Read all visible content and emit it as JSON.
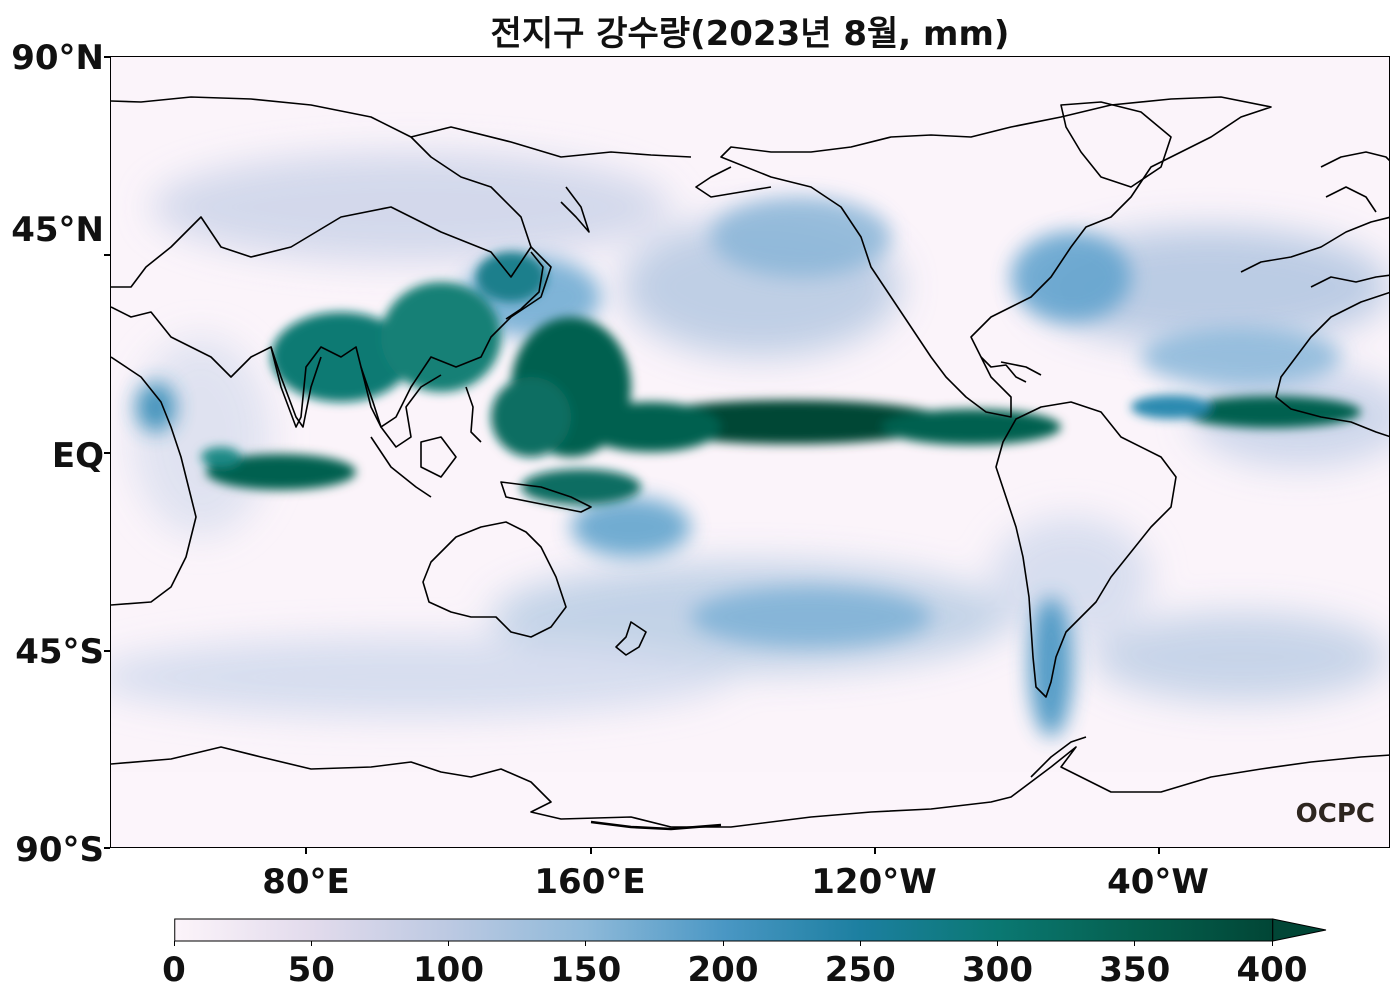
{
  "title": "전지구 강수량(2023년 8월, mm)",
  "credit": "OCPC",
  "axes": {
    "y_ticks": [
      "90°N",
      "45°N",
      "EQ",
      "45°S",
      "90°S"
    ],
    "x_ticks": [
      "80°E",
      "160°E",
      "120°W",
      "40°W"
    ]
  },
  "colorbar": {
    "min": 0,
    "max": 400,
    "extend": "max",
    "ticks": [
      "0",
      "50",
      "100",
      "150",
      "200",
      "250",
      "300",
      "350",
      "400"
    ],
    "colors": [
      "#fcf4fa",
      "#e2dbec",
      "#bcc9e2",
      "#8eb9d9",
      "#4a97c4",
      "#1c7fa0",
      "#0a7872",
      "#05604f",
      "#014636"
    ]
  },
  "map": {
    "projection": "plate carree",
    "central_longitude": "dateline-centered (30°E to 30°E)",
    "features": [
      "coastlines",
      "precipitation field"
    ]
  }
}
